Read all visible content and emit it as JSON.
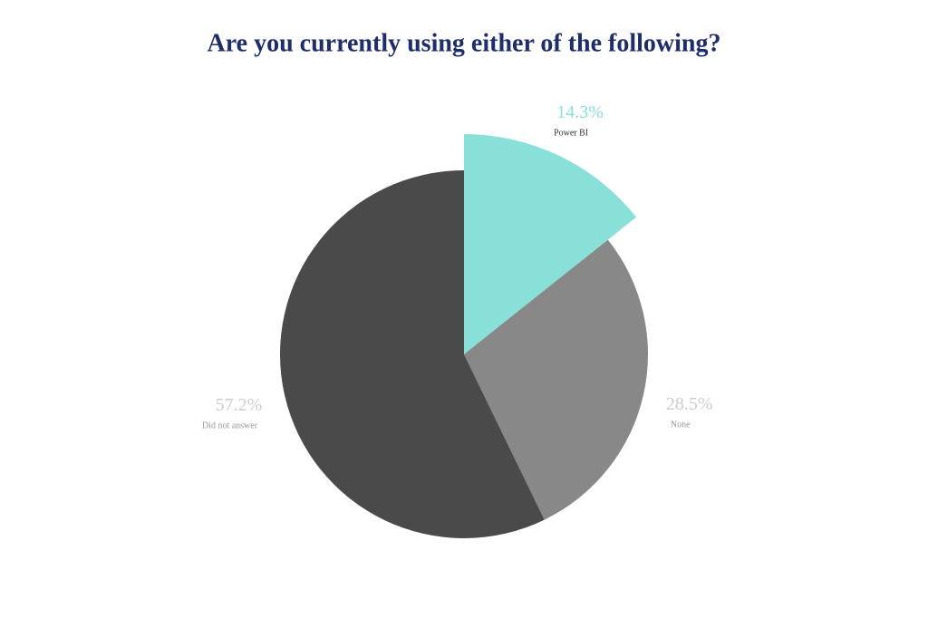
{
  "chart_data": {
    "type": "pie",
    "title": "Are you currently using either of the following?",
    "categories": [
      "Power BI",
      "None",
      "Did not answer"
    ],
    "values": [
      14.3,
      28.5,
      57.2
    ],
    "value_labels": [
      "14.3%",
      "28.5%",
      "57.2%"
    ],
    "colors": [
      "#88e0d8",
      "#888888",
      "#4a4a4a"
    ],
    "highlight": "Power BI"
  }
}
